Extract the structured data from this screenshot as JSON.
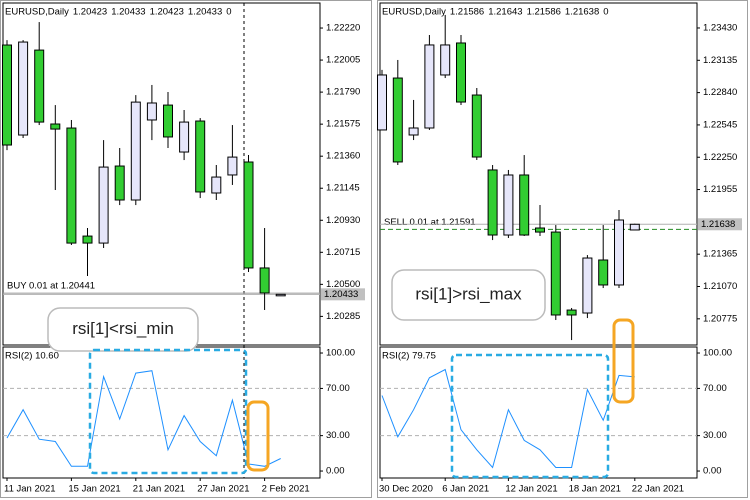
{
  "chart_data": [
    {
      "type": "candlestick",
      "symbol": "EURUSD,Daily",
      "tick_volume": 0,
      "categories": [
        "11 Jan 2021",
        null,
        null,
        null,
        "15 Jan 2021",
        null,
        null,
        null,
        "21 Jan 2021",
        null,
        null,
        null,
        "27 Jan 2021",
        null,
        null,
        null,
        "2 Feb 2021",
        null
      ],
      "open": [
        1.22106,
        1.21502,
        1.22072,
        1.21576,
        1.21549,
        1.20824,
        1.20777,
        1.21294,
        1.21066,
        1.21603,
        1.21703,
        1.21388,
        1.21596,
        1.21113,
        1.21234,
        1.21321,
        1.2061,
        1.20423
      ],
      "high": [
        1.22139,
        1.22139,
        1.2226,
        1.21703,
        1.21603,
        1.20878,
        1.21468,
        1.21415,
        1.2177,
        1.21838,
        1.21791,
        1.2167,
        1.21616,
        1.21301,
        1.21569,
        1.21368,
        1.20878,
        1.20433
      ],
      "low": [
        1.21401,
        1.21482,
        1.21569,
        1.21133,
        1.20764,
        1.20556,
        1.20744,
        1.21032,
        1.21032,
        1.21468,
        1.21415,
        1.21334,
        1.21079,
        1.21066,
        1.21167,
        1.20583,
        1.20328,
        1.20423
      ],
      "close": [
        1.21435,
        1.22126,
        1.21589,
        1.21542,
        1.20777,
        1.20777,
        1.21287,
        1.21066,
        1.21723,
        1.21717,
        1.21489,
        1.21589,
        1.2112,
        1.2122,
        1.21354,
        1.2061,
        1.20442,
        1.20433
      ],
      "up_color": "#e6e6fa",
      "down_color": "#32cd32",
      "ylim": [
        1.20093,
        1.22388
      ],
      "yticks": [
        {
          "value": 1.2222,
          "label": "1.22220"
        },
        1.22005,
        {
          "value": 1.2179,
          "label": "1.21790"
        },
        1.21575,
        {
          "value": 1.2136,
          "label": "1.21360"
        },
        1.21145,
        {
          "value": 1.2093,
          "label": "1.20930"
        },
        1.20715,
        {
          "value": 1.205,
          "label": "1.20500"
        },
        1.20285
      ],
      "order": {
        "label": "BUY 0.01 at 1.20441",
        "price": 1.20441,
        "color": "#a0a0a0",
        "dashed": false
      },
      "indicator": {
        "type": "line",
        "title": "RSI(2) 10.60",
        "color": "#1e90ff",
        "values": [
          28,
          52,
          27,
          25,
          4,
          4,
          80,
          44,
          83,
          85,
          18,
          47,
          25,
          13,
          60,
          6,
          4,
          10.6
        ],
        "ylim": [
          -5.9,
          105.1
        ],
        "yticks": [
          {
            "value": 100,
            "label": "100.00"
          },
          {
            "value": 70,
            "label": "70.00"
          },
          {
            "value": 30,
            "label": "30.00"
          },
          {
            "value": 0,
            "label": "0.00"
          }
        ]
      },
      "annotation": "rsi[1]<rsi_min"
    },
    {
      "type": "candlestick",
      "symbol": "EURUSD,Daily",
      "tick_volume": 0,
      "categories": [
        "30 Dec 2020",
        null,
        null,
        null,
        "6 Jan 2021",
        null,
        null,
        null,
        "12 Jan 2021",
        null,
        null,
        null,
        "18 Jan 2021",
        null,
        null,
        null,
        "22 Jan 2021"
      ],
      "open": [
        1.22499,
        1.22973,
        1.22453,
        1.22517,
        1.23001,
        1.23293,
        1.22818,
        1.22134,
        1.2154,
        1.22088,
        1.21604,
        1.21567,
        1.20855,
        1.20828,
        1.21312,
        1.21084,
        1.21586
      ],
      "high": [
        1.23047,
        1.23138,
        1.22773,
        1.23366,
        1.23549,
        1.23366,
        1.22882,
        1.22179,
        1.22134,
        1.2227,
        1.21814,
        1.21631,
        1.20874,
        1.21357,
        1.21631,
        1.21768,
        1.21643
      ],
      "low": [
        1.22499,
        1.22179,
        1.22407,
        1.22499,
        1.22973,
        1.22727,
        1.22225,
        1.21494,
        1.21513,
        1.21531,
        1.21531,
        1.20764,
        1.20581,
        1.20782,
        1.21056,
        1.21056,
        1.21586
      ],
      "close": [
        1.23001,
        1.22207,
        1.22517,
        1.23275,
        1.23275,
        1.22754,
        1.22252,
        1.2154,
        1.22088,
        1.2154,
        1.21567,
        1.2081,
        1.2081,
        1.2133,
        1.21084,
        1.21677,
        1.21638
      ],
      "up_color": "#e6e6fa",
      "down_color": "#32cd32",
      "ylim": [
        1.20536,
        1.23658
      ],
      "yticks": [
        {
          "value": 1.2343,
          "label": "1.23430"
        },
        1.23135,
        {
          "value": 1.2284,
          "label": "1.22840"
        },
        1.22545,
        {
          "value": 1.2225,
          "label": "1.22250"
        },
        1.21955,
        1.21365,
        {
          "value": 1.2107,
          "label": "1.21070"
        },
        1.20775
      ],
      "order": {
        "label": "SELL 0.01 at 1.21591",
        "price": 1.21591,
        "color": "#228b22",
        "dashed": true
      },
      "indicator": {
        "type": "line",
        "title": "RSI(2) 79.75",
        "color": "#1e90ff",
        "values": [
          64,
          29,
          52,
          79,
          86,
          35,
          18,
          3,
          52,
          26,
          18,
          3,
          3,
          69,
          43,
          81,
          79.75
        ],
        "ylim": [
          -5.9,
          105.1
        ],
        "yticks": [
          {
            "value": 100,
            "label": "100.00"
          },
          {
            "value": 70,
            "label": "70.00"
          },
          {
            "value": 30,
            "label": "30.00"
          },
          {
            "value": 0,
            "label": "0.00"
          }
        ]
      },
      "annotation": "rsi[1]>rsi_max"
    }
  ]
}
